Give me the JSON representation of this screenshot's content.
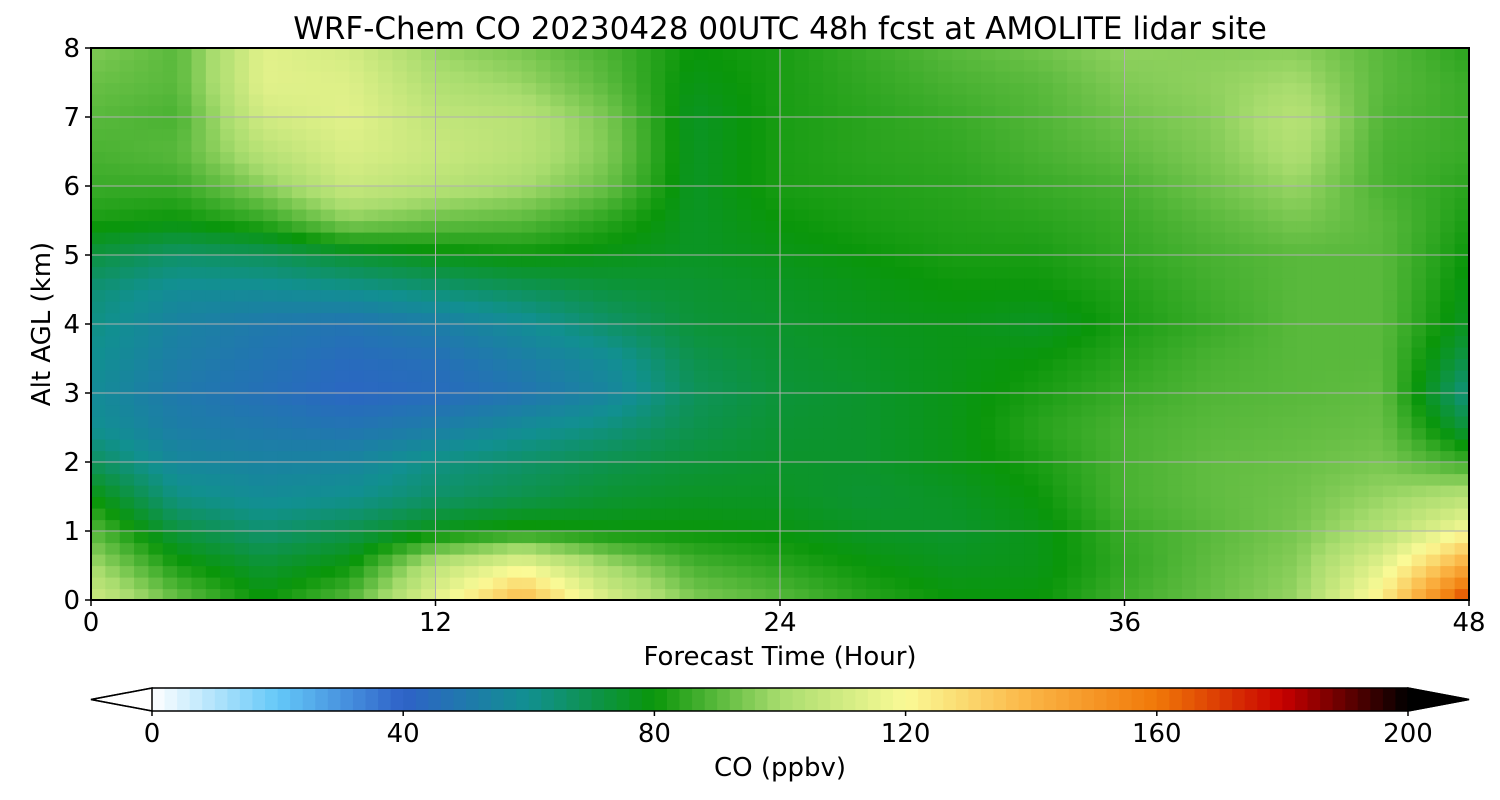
{
  "chart_data": {
    "type": "heatmap",
    "title": "WRF-Chem CO  20230428 00UTC 48h fcst at AMOLITE lidar site",
    "xlabel": "Forecast Time (Hour)",
    "ylabel": "Alt AGL (km)",
    "xlim": [
      0,
      48
    ],
    "ylim": [
      0,
      8
    ],
    "xticks": [
      "0",
      "12",
      "24",
      "36",
      "48"
    ],
    "yticks": [
      "0",
      "1",
      "2",
      "3",
      "4",
      "5",
      "6",
      "7",
      "8"
    ],
    "grid": true,
    "colorbar": {
      "label": "CO  (ppbv)",
      "range": [
        0,
        200
      ],
      "ticks": [
        "0",
        "40",
        "80",
        "120",
        "160",
        "200"
      ],
      "extend": "both",
      "colors": [
        "#ffffff",
        "#64c8f8",
        "#2e62c8",
        "#119090",
        "#0a960a",
        "#a8dc6e",
        "#fafa96",
        "#fbb444",
        "#f07808",
        "#c80000",
        "#000000"
      ]
    },
    "x": [
      0,
      3,
      6,
      9,
      12,
      15,
      18,
      21,
      24,
      27,
      30,
      33,
      36,
      39,
      42,
      45,
      48
    ],
    "y": [
      0,
      0.5,
      1,
      1.5,
      2,
      2.5,
      3,
      3.5,
      4,
      4.5,
      5,
      5.5,
      6,
      6.5,
      7,
      7.5,
      8
    ],
    "z": [
      [
        110,
        92,
        80,
        90,
        115,
        140,
        112,
        95,
        90,
        84,
        80,
        80,
        87,
        92,
        98,
        125,
        172
      ],
      [
        100,
        82,
        74,
        80,
        105,
        118,
        100,
        88,
        84,
        80,
        77,
        78,
        85,
        91,
        96,
        115,
        145
      ],
      [
        90,
        72,
        65,
        70,
        78,
        82,
        80,
        80,
        79,
        76,
        75,
        78,
        86,
        90,
        94,
        103,
        120
      ],
      [
        80,
        62,
        58,
        60,
        66,
        70,
        74,
        76,
        76,
        74,
        76,
        80,
        88,
        91,
        93,
        98,
        104
      ],
      [
        68,
        56,
        54,
        55,
        62,
        66,
        70,
        73,
        75,
        75,
        78,
        82,
        88,
        91,
        92,
        94,
        86
      ],
      [
        60,
        52,
        50,
        48,
        52,
        58,
        63,
        70,
        74,
        75,
        78,
        84,
        88,
        90,
        91,
        92,
        72
      ],
      [
        58,
        50,
        46,
        42,
        44,
        48,
        55,
        68,
        73,
        75,
        78,
        82,
        86,
        89,
        90,
        91,
        62
      ],
      [
        60,
        52,
        48,
        44,
        46,
        52,
        58,
        70,
        74,
        76,
        78,
        80,
        84,
        88,
        90,
        90,
        70
      ],
      [
        62,
        54,
        50,
        48,
        52,
        58,
        66,
        73,
        75,
        77,
        78,
        76,
        82,
        86,
        90,
        90,
        76
      ],
      [
        64,
        58,
        58,
        60,
        64,
        68,
        72,
        74,
        76,
        78,
        80,
        80,
        83,
        87,
        90,
        90,
        78
      ],
      [
        72,
        66,
        68,
        74,
        78,
        80,
        78,
        76,
        78,
        80,
        82,
        82,
        85,
        88,
        90,
        90,
        80
      ],
      [
        82,
        80,
        85,
        96,
        92,
        90,
        84,
        76,
        80,
        82,
        83,
        84,
        86,
        90,
        94,
        90,
        82
      ],
      [
        86,
        86,
        96,
        108,
        104,
        100,
        92,
        76,
        82,
        83,
        84,
        86,
        88,
        93,
        98,
        88,
        84
      ],
      [
        88,
        90,
        104,
        112,
        108,
        104,
        95,
        76,
        82,
        84,
        85,
        88,
        91,
        95,
        102,
        88,
        86
      ],
      [
        90,
        88,
        110,
        114,
        106,
        104,
        94,
        76,
        82,
        84,
        86,
        89,
        93,
        96,
        104,
        89,
        86
      ],
      [
        92,
        90,
        114,
        113,
        102,
        98,
        90,
        78,
        82,
        85,
        88,
        90,
        95,
        97,
        100,
        90,
        86
      ],
      [
        95,
        90,
        114,
        110,
        98,
        94,
        88,
        80,
        82,
        86,
        90,
        93,
        97,
        96,
        96,
        90,
        84
      ]
    ]
  }
}
